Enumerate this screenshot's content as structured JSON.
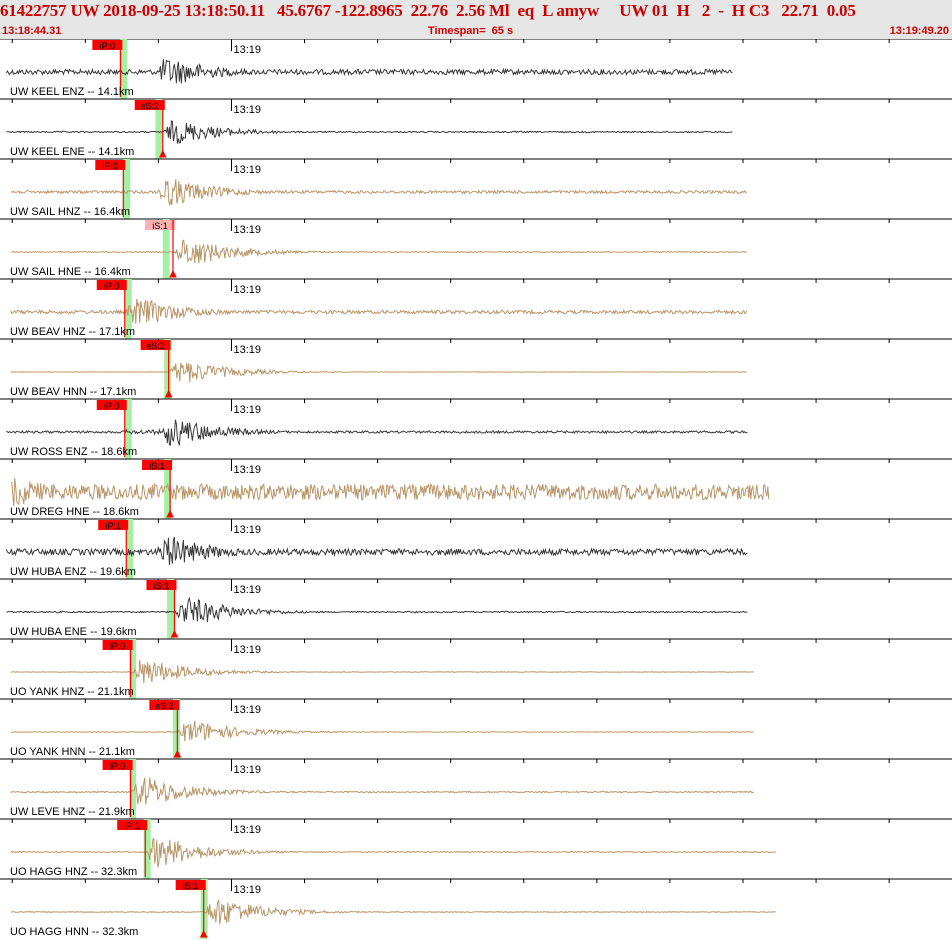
{
  "header": {
    "title": "61422757 UW 2018-09-25 13:18:50.11   45.6767 -122.8965  22.76  2.56 Ml  eq  L amyw     UW 01  H   2  -  H C3   22.71  0.05",
    "start_time": "13:18:44.31",
    "timespan": "Timespan=  65 s",
    "end_time": "13:19:49.20"
  },
  "time_tick_label": "13:19",
  "colors": {
    "velocity_trace": "#3a3a3a",
    "accel_trace": "#b8966a",
    "pick": "#ff0000",
    "pick_light": "#ffb0b0",
    "theoretical_arrival": "#a6f0a6",
    "header_bg": "#e6e6e6",
    "header_text": "#cc0000"
  },
  "channels": [
    {
      "label": "UW KEEL ENZ -- 14.1km",
      "kind": "velocity",
      "pick": "iP:0",
      "pick_t": 8.1,
      "green_t": 8.3,
      "signal_t": 10.5,
      "amp": 0.55,
      "noise": 0.18,
      "tail_end": 50.0
    },
    {
      "label": "UW KEEL ENE -- 14.1km",
      "kind": "velocity",
      "pick": "eS:2",
      "pick_t": 11.0,
      "green_t": 10.7,
      "signal_t": 11.0,
      "amp": 0.45,
      "noise": 0.06,
      "tail_end": 50.0
    },
    {
      "label": "UW SAIL HNZ -- 16.4km",
      "kind": "accel",
      "pick": "iP:0",
      "pick_t": 8.3,
      "green_t": 8.5,
      "signal_t": 10.5,
      "amp": 0.55,
      "noise": 0.1,
      "tail_end": 51.0
    },
    {
      "label": "UW SAIL HNE -- 16.4km",
      "kind": "accel",
      "pick": "iS:1",
      "pick_t": 11.7,
      "green_t": 11.2,
      "signal_t": 11.8,
      "amp": 0.55,
      "noise": 0.03,
      "tail_end": 51.0,
      "light": true
    },
    {
      "label": "UW BEAV HNZ -- 17.1km",
      "kind": "accel",
      "pick": "iP:0",
      "pick_t": 8.4,
      "green_t": 8.6,
      "signal_t": 8.4,
      "amp": 0.55,
      "noise": 0.12,
      "tail_end": 51.0
    },
    {
      "label": "UW BEAV HNN -- 17.1km",
      "kind": "accel",
      "pick": "eS:2",
      "pick_t": 11.4,
      "green_t": 11.3,
      "signal_t": 11.4,
      "amp": 0.45,
      "noise": 0.01,
      "tail_end": 51.0
    },
    {
      "label": "UW ROSS ENZ -- 18.6km",
      "kind": "velocity",
      "pick": "iP:0",
      "pick_t": 8.4,
      "green_t": 8.6,
      "signal_t": 10.8,
      "amp": 0.55,
      "noise": 0.08,
      "tail_end": 51.0
    },
    {
      "label": "UW DREG HNE -- 18.6km",
      "kind": "accel",
      "pick": "iS:1",
      "pick_t": 11.5,
      "green_t": 11.3,
      "signal_t": 0.0,
      "amp": 0.55,
      "noise": 0.55,
      "tail_end": 52.5
    },
    {
      "label": "UW HUBA ENZ -- 19.6km",
      "kind": "velocity",
      "pick": "iP:1",
      "pick_t": 8.5,
      "green_t": 8.7,
      "signal_t": 10.5,
      "amp": 0.6,
      "noise": 0.2,
      "tail_end": 51.0
    },
    {
      "label": "UW HUBA ENE -- 19.6km",
      "kind": "velocity",
      "pick": "iS:1",
      "pick_t": 11.8,
      "green_t": 11.5,
      "signal_t": 11.8,
      "amp": 0.55,
      "noise": 0.05,
      "tail_end": 51.0
    },
    {
      "label": "UO YANK HNZ -- 21.1km",
      "kind": "accel",
      "pick": "iP:0",
      "pick_t": 8.8,
      "green_t": 8.9,
      "signal_t": 8.8,
      "amp": 0.5,
      "noise": 0.02,
      "tail_end": 51.5
    },
    {
      "label": "UO YANK HNN -- 21.1km",
      "kind": "accel",
      "pick": "eS:2",
      "pick_t": 12.0,
      "green_t": 11.9,
      "signal_t": 12.0,
      "amp": 0.45,
      "noise": 0.02,
      "tail_end": 51.5
    },
    {
      "label": "UW LEVE HNZ -- 21.9km",
      "kind": "accel",
      "pick": "iP:0",
      "pick_t": 8.8,
      "green_t": 8.9,
      "signal_t": 8.8,
      "amp": 0.6,
      "noise": 0.04,
      "tail_end": 51.5
    },
    {
      "label": "UO HAGG HNZ -- 32.3km",
      "kind": "accel",
      "pick": "iP:1",
      "pick_t": 9.8,
      "green_t": 9.9,
      "signal_t": 9.8,
      "amp": 0.6,
      "noise": 0.03,
      "tail_end": 53.0
    },
    {
      "label": "UO HAGG HNN -- 32.3km",
      "kind": "accel",
      "pick": "iS:1",
      "pick_t": 13.8,
      "green_t": 13.8,
      "signal_t": 13.8,
      "amp": 0.55,
      "noise": 0.03,
      "tail_end": 53.0
    }
  ],
  "minute_tick_t": 15.7
}
